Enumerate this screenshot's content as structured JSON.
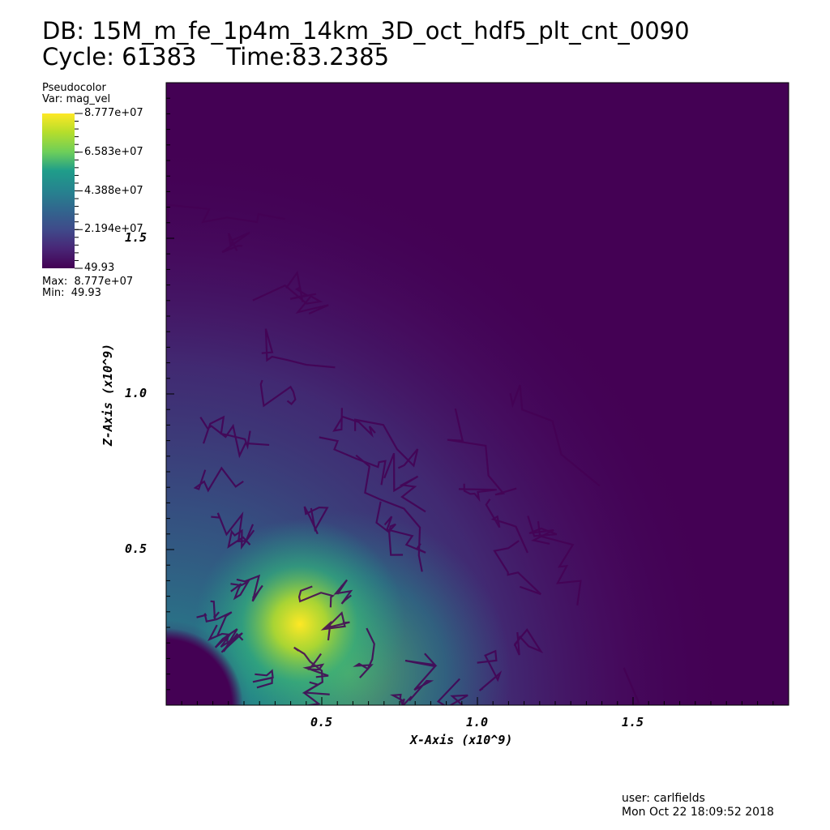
{
  "header": {
    "db_line": "DB: 15M_m_fe_1p4m_14km_3D_oct_hdf5_plt_cnt_0090",
    "cycle_line": "Cycle: 61383    Time:83.2385"
  },
  "legend": {
    "plot_type": "Pseudocolor",
    "var_line": "Var: mag_vel",
    "max_line": "Max:  8.777e+07",
    "min_line": "Min:  49.93",
    "colormap": "viridis",
    "labels": [
      "8.777e+07",
      "6.583e+07",
      "4.388e+07",
      "2.194e+07",
      "49.93"
    ],
    "values": [
      87770000,
      65830000,
      43880000,
      21940000,
      49.93
    ]
  },
  "chart_data": {
    "type": "heatmap",
    "variable": "mag_vel",
    "xlabel": "X-Axis (x10^9)",
    "ylabel": "Z-Axis (x10^9)",
    "xlim": [
      0,
      2.0
    ],
    "ylim": [
      0,
      2.0
    ],
    "x_ticks": [
      0.5,
      1.0,
      1.5
    ],
    "y_ticks": [
      0.5,
      1.0,
      1.5
    ],
    "x_tick_labels": [
      "0.5",
      "1.0",
      "1.5"
    ],
    "y_tick_labels": [
      "0.5",
      "1.0",
      "1.5"
    ],
    "value_min": 49.93,
    "value_max": 87770000,
    "colormap": "viridis"
  },
  "footer": {
    "user_line": "user: carlfields",
    "date_line": "Mon Oct 22 18:09:52 2018"
  }
}
